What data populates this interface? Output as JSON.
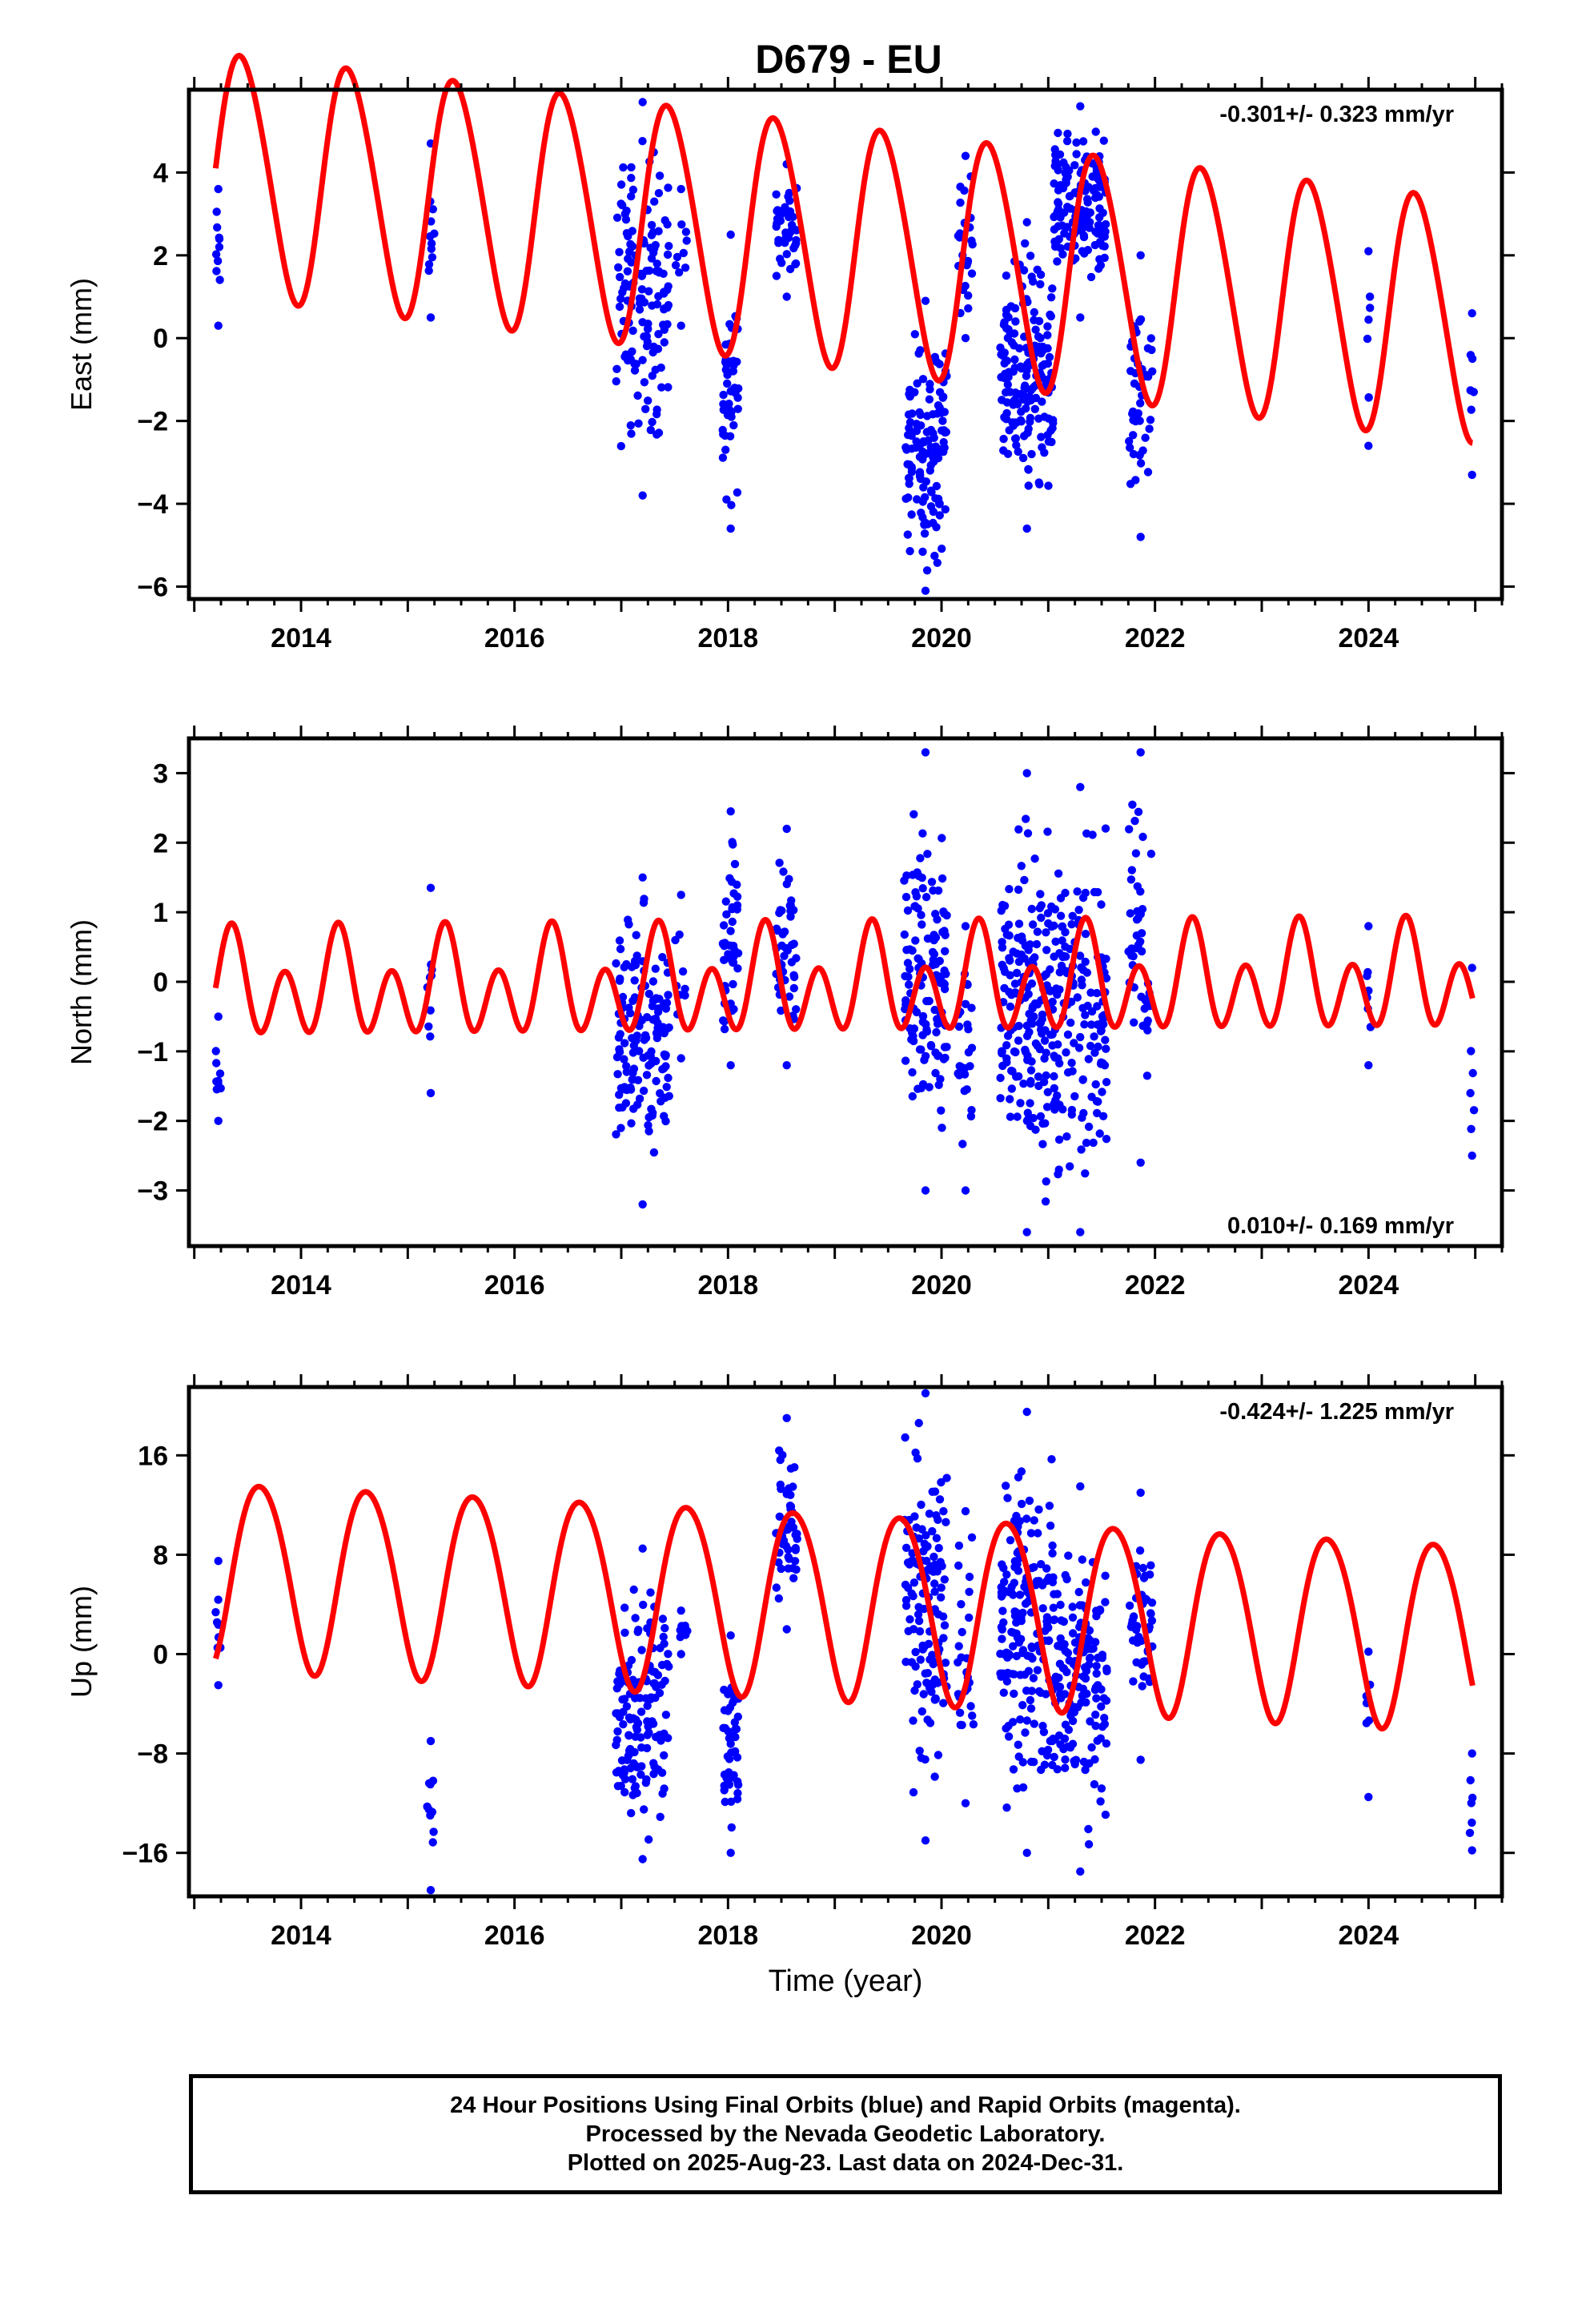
{
  "title": "D679 - EU",
  "colors": {
    "observations": "#0000ff",
    "model": "#ff0000",
    "axes": "#000000"
  },
  "chart_data": [
    {
      "type": "scatter",
      "component": "east",
      "ylabel": "East (mm)",
      "xlabel": "",
      "xlim": [
        2012.95,
        2025.25
      ],
      "ylim": [
        -6.3,
        6.0
      ],
      "yticks": [
        -6,
        -4,
        -2,
        0,
        2,
        4
      ],
      "xticks": [
        2014,
        2016,
        2018,
        2020,
        2022,
        2024
      ],
      "trend_label": "-0.301+/- 0.323 mm/yr",
      "trend_position": "top-right",
      "model": {
        "slope": -0.301,
        "mean": 2.25,
        "annual_amp": 2.9,
        "annual_peak": 0.45,
        "semi_amp": 0.25,
        "semi_peak": 0.3,
        "start": 2013.2,
        "end": 2024.98
      },
      "clusters": [
        {
          "start": 2013.2,
          "end": 2013.25,
          "min": 0.3,
          "max": 3.6,
          "n": 9
        },
        {
          "start": 2015.18,
          "end": 2015.25,
          "min": 0.5,
          "max": 4.7,
          "n": 10
        },
        {
          "start": 2016.95,
          "end": 2017.45,
          "min": -3.8,
          "max": 5.7,
          "n": 140
        },
        {
          "start": 2017.5,
          "end": 2017.62,
          "min": 0.3,
          "max": 3.6,
          "n": 8
        },
        {
          "start": 2017.95,
          "end": 2018.1,
          "min": -4.6,
          "max": 2.5,
          "n": 45
        },
        {
          "start": 2018.45,
          "end": 2018.65,
          "min": 1.0,
          "max": 4.2,
          "n": 45
        },
        {
          "start": 2019.65,
          "end": 2020.05,
          "min": -6.1,
          "max": 0.9,
          "n": 130
        },
        {
          "start": 2020.15,
          "end": 2020.3,
          "min": 0.0,
          "max": 4.4,
          "n": 25
        },
        {
          "start": 2020.55,
          "end": 2021.05,
          "min": -4.6,
          "max": 2.8,
          "n": 170
        },
        {
          "start": 2021.05,
          "end": 2021.55,
          "min": 0.5,
          "max": 5.6,
          "n": 150
        },
        {
          "start": 2021.75,
          "end": 2021.98,
          "min": -4.8,
          "max": 2.0,
          "n": 45
        },
        {
          "start": 2023.98,
          "end": 2024.02,
          "min": -2.6,
          "max": 2.1,
          "n": 6
        },
        {
          "start": 2024.95,
          "end": 2024.99,
          "min": -3.3,
          "max": 0.6,
          "n": 5
        }
      ]
    },
    {
      "type": "scatter",
      "component": "north",
      "ylabel": "North (mm)",
      "xlabel": "",
      "xlim": [
        2012.95,
        2025.25
      ],
      "ylim": [
        -3.8,
        3.5
      ],
      "yticks": [
        -3,
        -2,
        -1,
        0,
        1,
        2,
        3
      ],
      "xticks": [
        2014,
        2016,
        2018,
        2020,
        2022,
        2024
      ],
      "trend_label": "0.010+/- 0.169 mm/yr",
      "trend_position": "bottom-right",
      "model": {
        "slope": 0.01,
        "mean": -0.05,
        "annual_amp": 0.35,
        "annual_peak": 0.35,
        "semi_amp": 0.6,
        "semi_peak": 0.35,
        "start": 2013.2,
        "end": 2024.98
      },
      "clusters": [
        {
          "start": 2013.2,
          "end": 2013.25,
          "min": -2.0,
          "max": -0.5,
          "n": 8
        },
        {
          "start": 2015.18,
          "end": 2015.25,
          "min": -1.6,
          "max": 1.35,
          "n": 8
        },
        {
          "start": 2016.95,
          "end": 2017.45,
          "min": -3.2,
          "max": 1.5,
          "n": 140
        },
        {
          "start": 2017.5,
          "end": 2017.62,
          "min": -1.1,
          "max": 1.25,
          "n": 8
        },
        {
          "start": 2017.95,
          "end": 2018.1,
          "min": -1.2,
          "max": 2.45,
          "n": 45
        },
        {
          "start": 2018.45,
          "end": 2018.65,
          "min": -1.2,
          "max": 2.2,
          "n": 45
        },
        {
          "start": 2019.65,
          "end": 2020.05,
          "min": -3.0,
          "max": 3.3,
          "n": 130
        },
        {
          "start": 2020.15,
          "end": 2020.3,
          "min": -3.0,
          "max": 0.8,
          "n": 25
        },
        {
          "start": 2020.55,
          "end": 2021.05,
          "min": -3.6,
          "max": 3.0,
          "n": 170
        },
        {
          "start": 2021.05,
          "end": 2021.55,
          "min": -3.6,
          "max": 2.8,
          "n": 150
        },
        {
          "start": 2021.75,
          "end": 2021.98,
          "min": -2.6,
          "max": 3.3,
          "n": 45
        },
        {
          "start": 2023.98,
          "end": 2024.02,
          "min": -1.2,
          "max": 0.8,
          "n": 6
        },
        {
          "start": 2024.95,
          "end": 2024.99,
          "min": -2.5,
          "max": 0.2,
          "n": 5
        }
      ]
    },
    {
      "type": "scatter",
      "component": "up",
      "ylabel": "Up (mm)",
      "xlabel": "Time (year)",
      "xlim": [
        2012.95,
        2025.25
      ],
      "ylim": [
        -19.5,
        21.5
      ],
      "yticks": [
        -16,
        -8,
        0,
        8,
        16
      ],
      "ytick_labels": [
        "−16",
        "−8",
        "0",
        "8",
        "16"
      ],
      "xticks": [
        2014,
        2016,
        2018,
        2020,
        2022,
        2024
      ],
      "trend_label": "-0.424+/- 1.225 mm/yr",
      "trend_position": "top-right",
      "model": {
        "slope": -0.424,
        "mean": 4.2,
        "annual_amp": 7.5,
        "annual_peak": 0.62,
        "semi_amp": 0.6,
        "semi_peak": 0.4,
        "start": 2013.2,
        "end": 2024.98
      },
      "clusters": [
        {
          "start": 2013.2,
          "end": 2013.25,
          "min": -2.5,
          "max": 7.5,
          "n": 9
        },
        {
          "start": 2015.18,
          "end": 2015.25,
          "min": -19.0,
          "max": -7.0,
          "n": 9
        },
        {
          "start": 2016.95,
          "end": 2017.45,
          "min": -16.5,
          "max": 8.5,
          "n": 140
        },
        {
          "start": 2017.5,
          "end": 2017.62,
          "min": 0.0,
          "max": 3.5,
          "n": 8
        },
        {
          "start": 2017.95,
          "end": 2018.1,
          "min": -16.0,
          "max": 1.5,
          "n": 45
        },
        {
          "start": 2018.45,
          "end": 2018.65,
          "min": 2.0,
          "max": 19.0,
          "n": 45
        },
        {
          "start": 2019.65,
          "end": 2020.05,
          "min": -15.0,
          "max": 21.0,
          "n": 130
        },
        {
          "start": 2020.15,
          "end": 2020.3,
          "min": -12.0,
          "max": 11.5,
          "n": 25
        },
        {
          "start": 2020.55,
          "end": 2021.05,
          "min": -16.0,
          "max": 19.5,
          "n": 170
        },
        {
          "start": 2021.05,
          "end": 2021.55,
          "min": -17.5,
          "max": 13.5,
          "n": 150
        },
        {
          "start": 2021.75,
          "end": 2021.98,
          "min": -8.5,
          "max": 13.0,
          "n": 45
        },
        {
          "start": 2023.98,
          "end": 2024.02,
          "min": -11.5,
          "max": 0.2,
          "n": 6
        },
        {
          "start": 2024.95,
          "end": 2024.99,
          "min": -15.8,
          "max": -8.0,
          "n": 5
        }
      ]
    }
  ],
  "footer": {
    "line1": "24 Hour Positions Using Final Orbits (blue) and Rapid Orbits (magenta).",
    "line2": "Processed by the Nevada Geodetic Laboratory.",
    "line3": "Plotted on 2025-Aug-23. Last data on 2024-Dec-31."
  }
}
